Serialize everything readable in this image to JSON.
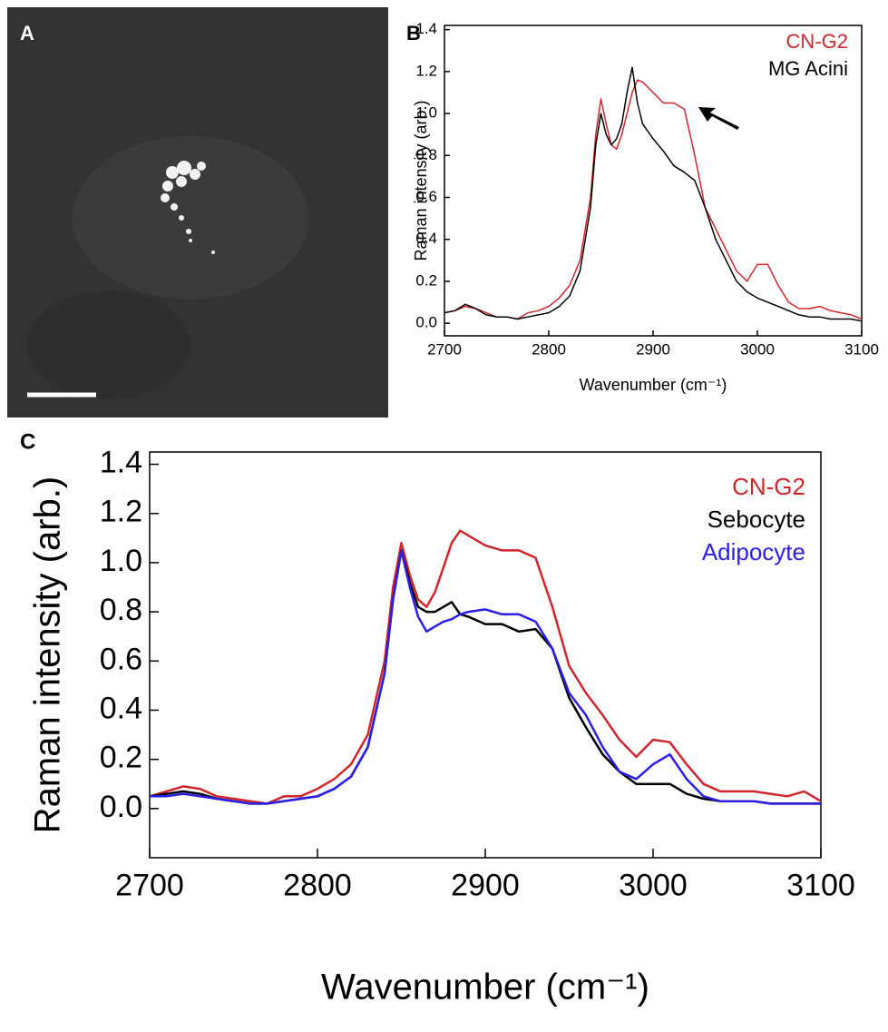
{
  "panel_a": {
    "label": "A"
  },
  "chart_data": [
    {
      "type": "line",
      "label": "B",
      "x_label": "Wavenumber (cm⁻¹)",
      "y_label": "Raman intensity (arb.)",
      "x": [
        2700,
        2710,
        2720,
        2730,
        2740,
        2750,
        2760,
        2770,
        2780,
        2790,
        2800,
        2810,
        2820,
        2830,
        2840,
        2845,
        2850,
        2855,
        2860,
        2865,
        2870,
        2875,
        2880,
        2885,
        2890,
        2900,
        2910,
        2920,
        2930,
        2940,
        2950,
        2960,
        2970,
        2980,
        2990,
        3000,
        3010,
        3020,
        3030,
        3040,
        3050,
        3060,
        3070,
        3080,
        3090,
        3100
      ],
      "series": [
        {
          "name": "CN-G2",
          "color": "#d0262b",
          "values": [
            0.05,
            0.06,
            0.08,
            0.07,
            0.05,
            0.03,
            0.03,
            0.02,
            0.05,
            0.06,
            0.08,
            0.12,
            0.18,
            0.3,
            0.6,
            0.9,
            1.07,
            0.95,
            0.85,
            0.83,
            0.9,
            1.0,
            1.1,
            1.16,
            1.15,
            1.1,
            1.05,
            1.05,
            1.02,
            0.8,
            0.55,
            0.45,
            0.35,
            0.25,
            0.2,
            0.28,
            0.28,
            0.18,
            0.1,
            0.07,
            0.07,
            0.08,
            0.06,
            0.05,
            0.04,
            0.02
          ]
        },
        {
          "name": "MG Acini",
          "color": "#000000",
          "values": [
            0.05,
            0.06,
            0.09,
            0.07,
            0.04,
            0.03,
            0.03,
            0.02,
            0.03,
            0.04,
            0.05,
            0.08,
            0.13,
            0.25,
            0.55,
            0.85,
            1.0,
            0.9,
            0.85,
            0.88,
            0.95,
            1.1,
            1.22,
            1.05,
            0.95,
            0.88,
            0.82,
            0.75,
            0.72,
            0.68,
            0.55,
            0.4,
            0.3,
            0.2,
            0.15,
            0.12,
            0.1,
            0.08,
            0.06,
            0.04,
            0.03,
            0.03,
            0.02,
            0.02,
            0.02,
            0.01
          ]
        }
      ],
      "xlim": [
        2700,
        3100
      ],
      "xticks": [
        2700,
        2800,
        2900,
        3000,
        3100
      ],
      "ylim": [
        -0.06,
        1.42
      ],
      "yticks": [
        {
          "value": 0,
          "label": "0.0"
        },
        0.2,
        0.4,
        0.6,
        0.8,
        {
          "value": 1,
          "label": "1.0"
        },
        1.2,
        1.4
      ]
    },
    {
      "type": "line",
      "label": "C",
      "x_label": "Wavenumber (cm⁻¹)",
      "y_label": "Raman intensity (arb.)",
      "x": [
        2700,
        2710,
        2720,
        2730,
        2740,
        2750,
        2760,
        2770,
        2780,
        2790,
        2800,
        2810,
        2820,
        2830,
        2840,
        2845,
        2850,
        2855,
        2860,
        2865,
        2870,
        2875,
        2880,
        2885,
        2890,
        2900,
        2910,
        2920,
        2930,
        2940,
        2950,
        2960,
        2970,
        2980,
        2990,
        3000,
        3010,
        3020,
        3030,
        3040,
        3050,
        3060,
        3070,
        3080,
        3090,
        3100
      ],
      "series": [
        {
          "name": "CN-G2",
          "color": "#d0262b",
          "values": [
            0.05,
            0.07,
            0.09,
            0.08,
            0.05,
            0.04,
            0.03,
            0.02,
            0.05,
            0.05,
            0.08,
            0.12,
            0.18,
            0.3,
            0.6,
            0.9,
            1.08,
            0.95,
            0.85,
            0.82,
            0.88,
            0.98,
            1.08,
            1.13,
            1.11,
            1.07,
            1.05,
            1.05,
            1.02,
            0.82,
            0.58,
            0.47,
            0.38,
            0.28,
            0.21,
            0.28,
            0.27,
            0.18,
            0.1,
            0.07,
            0.07,
            0.07,
            0.06,
            0.05,
            0.07,
            0.03
          ]
        },
        {
          "name": "Sebocyte",
          "color": "#000000",
          "values": [
            0.05,
            0.06,
            0.07,
            0.06,
            0.04,
            0.03,
            0.02,
            0.02,
            0.03,
            0.04,
            0.05,
            0.08,
            0.13,
            0.25,
            0.55,
            0.85,
            1.05,
            0.92,
            0.82,
            0.8,
            0.8,
            0.82,
            0.84,
            0.79,
            0.78,
            0.75,
            0.75,
            0.72,
            0.73,
            0.65,
            0.45,
            0.33,
            0.22,
            0.15,
            0.1,
            0.1,
            0.1,
            0.06,
            0.04,
            0.03,
            0.03,
            0.03,
            0.02,
            0.02,
            0.02,
            0.02
          ]
        },
        {
          "name": "Adipocyte",
          "color": "#2a1ee8",
          "values": [
            0.05,
            0.05,
            0.06,
            0.05,
            0.04,
            0.03,
            0.02,
            0.02,
            0.03,
            0.04,
            0.05,
            0.08,
            0.13,
            0.25,
            0.55,
            0.85,
            1.05,
            0.9,
            0.78,
            0.72,
            0.74,
            0.76,
            0.77,
            0.79,
            0.8,
            0.81,
            0.79,
            0.79,
            0.76,
            0.65,
            0.47,
            0.38,
            0.25,
            0.15,
            0.12,
            0.18,
            0.22,
            0.12,
            0.05,
            0.03,
            0.03,
            0.03,
            0.02,
            0.02,
            0.02,
            0.02
          ]
        }
      ],
      "xlim": [
        2700,
        3100
      ],
      "xticks": [
        2700,
        2800,
        2900,
        3000,
        3100
      ],
      "ylim": [
        -0.2,
        1.45
      ],
      "yticks": [
        {
          "value": 0,
          "label": "0.0"
        },
        0.2,
        0.4,
        0.6,
        0.8,
        {
          "value": 1,
          "label": "1.0"
        },
        1.2,
        1.4
      ]
    }
  ]
}
